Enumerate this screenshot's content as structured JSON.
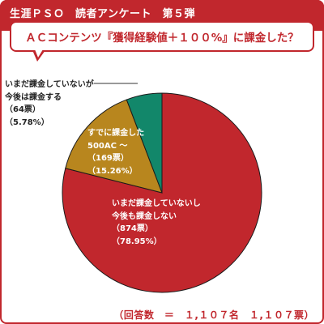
{
  "header": {
    "title": "生涯ＰＳＯ　読者アンケート　第５弾"
  },
  "question": "ＡＣコンテンツ『獲得経験値＋１００%』に課金した？",
  "colors": {
    "accent": "#c1272d",
    "slice_not_paid_no_plan": "#c1272d",
    "slice_already_paid": "#b8861e",
    "slice_not_yet_will_pay": "#12876a"
  },
  "chart_data": {
    "type": "pie",
    "title": "ＡＣコンテンツ『獲得経験値＋１００%』に課金した？",
    "slices": [
      {
        "label_lines": [
          "いまだ課金していないし",
          "今後も課金しない"
        ],
        "value": 874,
        "value_text": "（874票）",
        "percent": 78.95,
        "percent_text": "（78.95%）",
        "color": "#c1272d"
      },
      {
        "label_lines": [
          "すでに課金した",
          "500AC ～"
        ],
        "value": 169,
        "value_text": "（169票）",
        "percent": 15.26,
        "percent_text": "（15.26%）",
        "color": "#b8861e"
      },
      {
        "label_lines": [
          "いまだ課金していないが",
          "今後は課金する"
        ],
        "value": 64,
        "value_text": "（64票）",
        "percent": 5.78,
        "percent_text": "（5.78%）",
        "color": "#12876a"
      }
    ],
    "total_text": "（回答数　＝　１,１０７名　１,１０７票）"
  }
}
